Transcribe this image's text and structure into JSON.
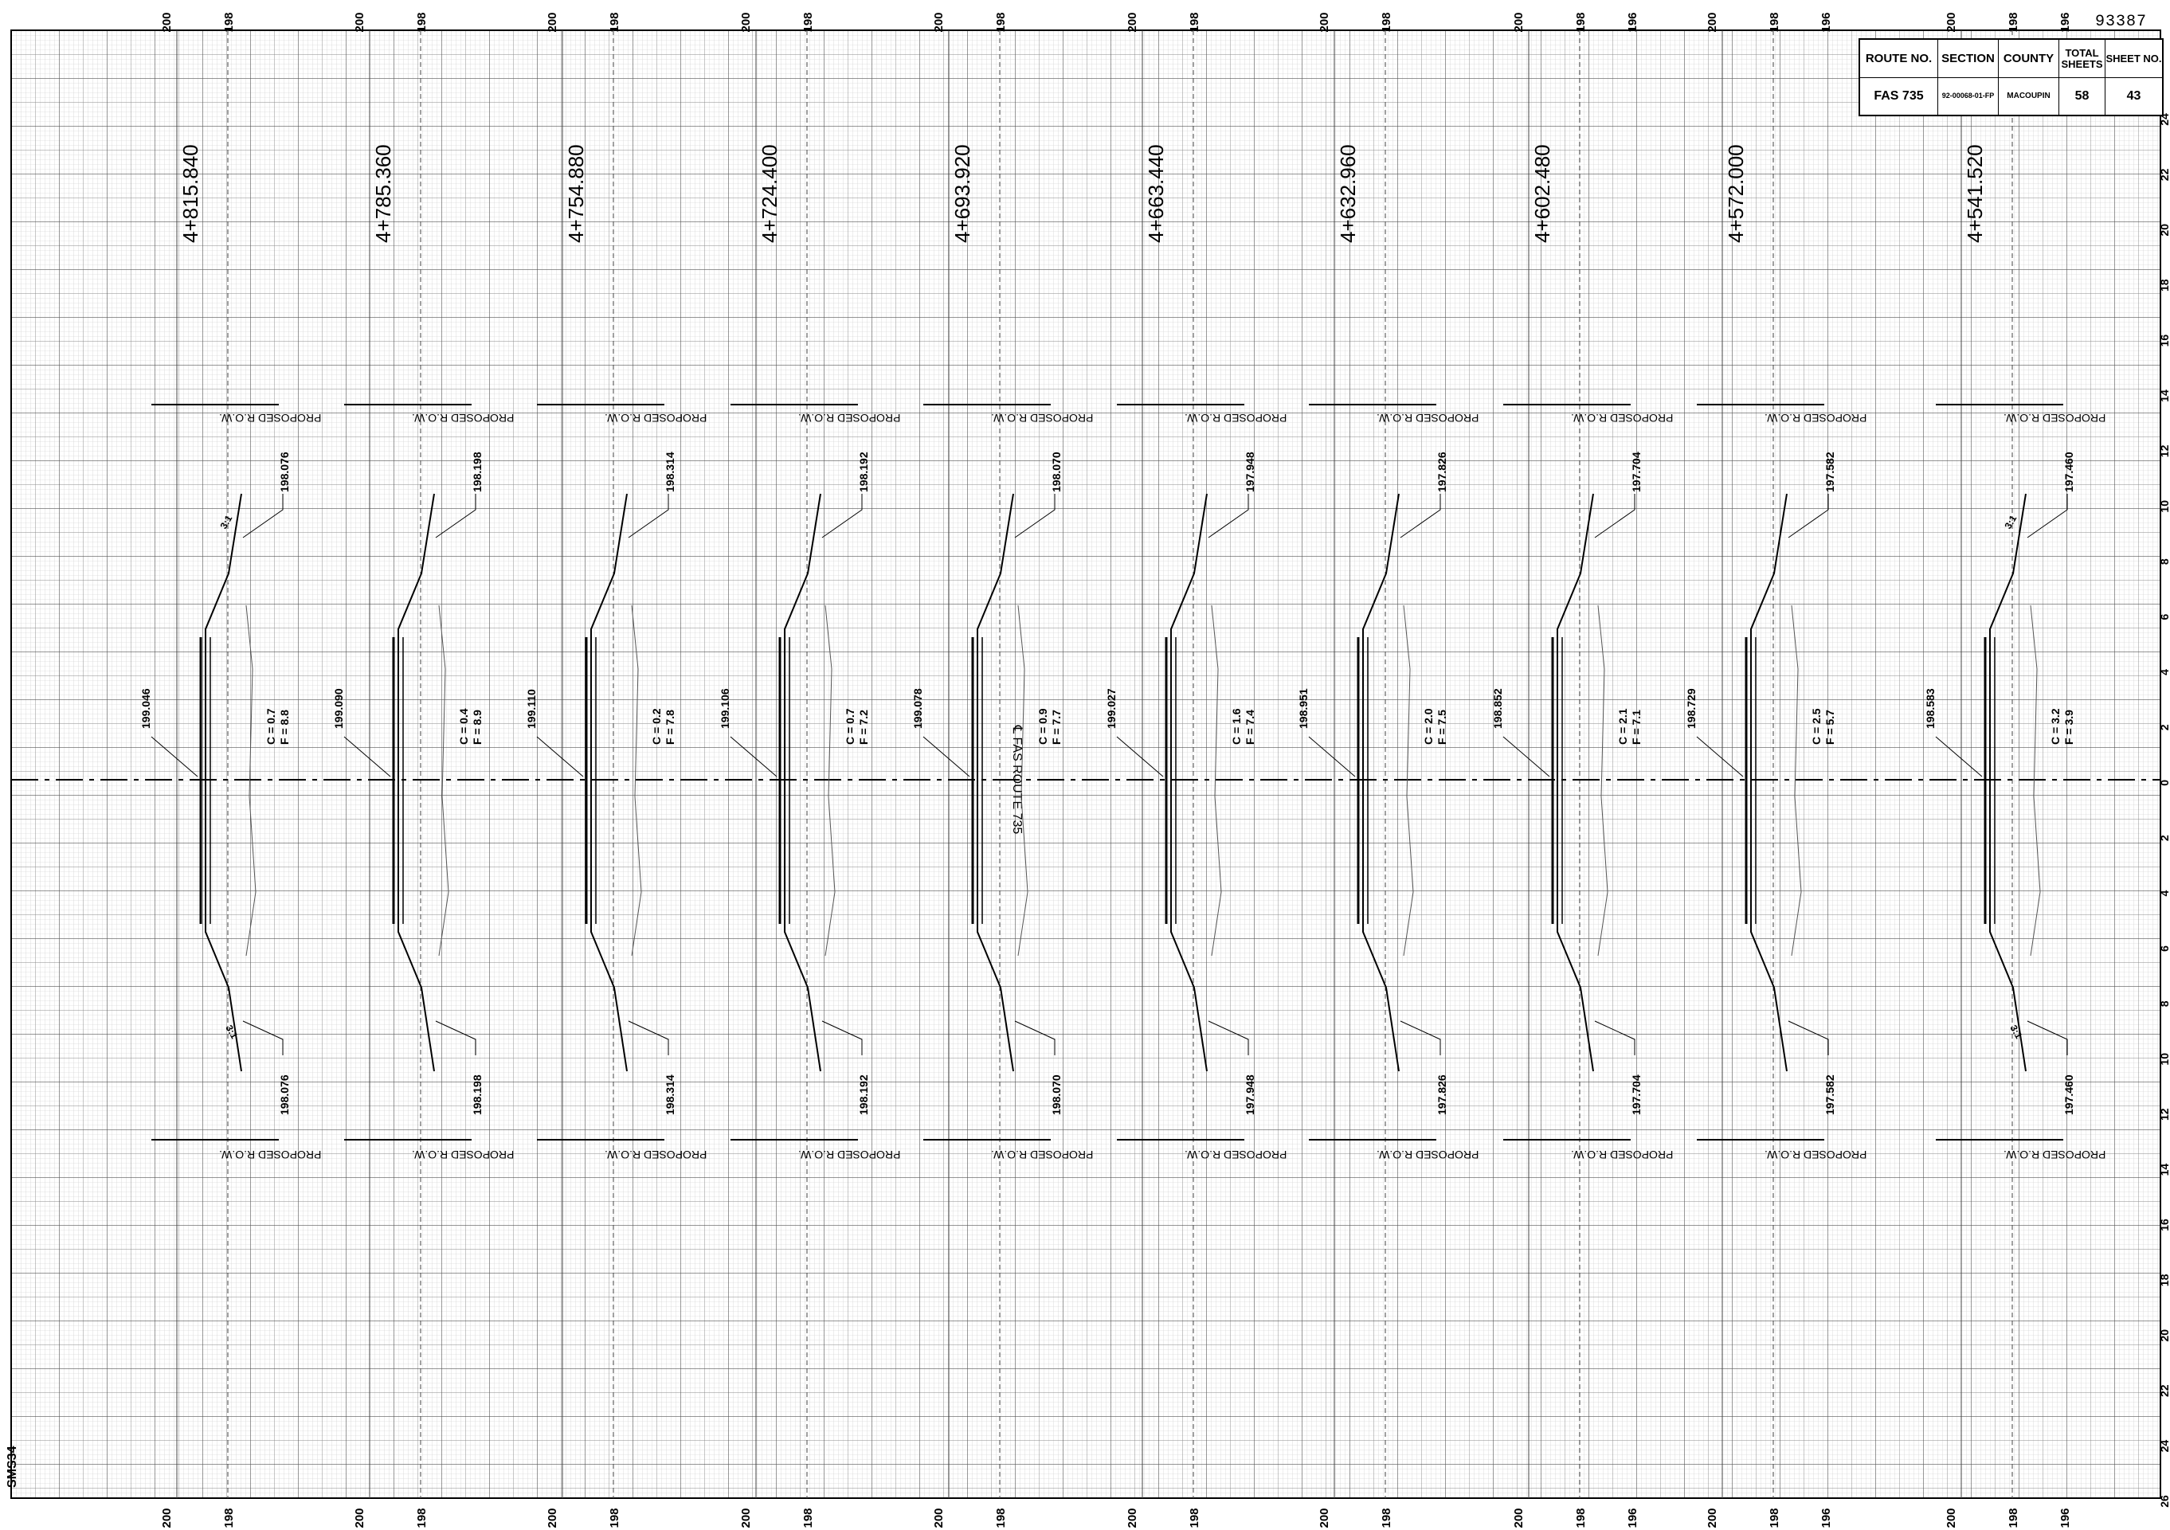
{
  "sheet_number": "93387",
  "corner_code": "SMS34",
  "title_block": {
    "route_no_header": "ROUTE NO.",
    "section_header": "SECTION",
    "county_header": "COUNTY",
    "total_sheets_header": "TOTAL SHEETS",
    "sheet_no_header": "SHEET NO.",
    "route_no": "FAS 735",
    "section": "92-00068-01-FP",
    "county": "MACOUPIN",
    "total_sheets": "58",
    "sheet_no": "43"
  },
  "centerline_label": "℄ FAS ROUTE 735",
  "row_label": "PROPOSED R.O.W.",
  "slope_label": "3:1",
  "elevation_scale_labels": [
    "200",
    "198",
    "196"
  ],
  "offset_scale_labels": [
    "24",
    "22",
    "20",
    "18",
    "16",
    "14",
    "12",
    "10",
    "8",
    "6",
    "4",
    "2",
    "0",
    "2",
    "4",
    "6",
    "8",
    "10",
    "12",
    "14",
    "16",
    "18",
    "20",
    "22",
    "24",
    "26"
  ],
  "sections": [
    {
      "station": "4+815.840",
      "centerline_elev": "199.046",
      "edge_elev": "198.076",
      "cut": "C = 0.7",
      "fill": "F = 8.8"
    },
    {
      "station": "4+785.360",
      "centerline_elev": "199.090",
      "edge_elev": "198.198",
      "cut": "C = 0.4",
      "fill": "F = 8.9"
    },
    {
      "station": "4+754.880",
      "centerline_elev": "199.110",
      "edge_elev": "198.314",
      "cut": "C = 0.2",
      "fill": "F = 7.8"
    },
    {
      "station": "4+724.400",
      "centerline_elev": "199.106",
      "edge_elev": "198.192",
      "cut": "C = 0.7",
      "fill": "F = 7.2"
    },
    {
      "station": "4+693.920",
      "centerline_elev": "199.078",
      "edge_elev": "198.070",
      "cut": "C = 0.9",
      "fill": "F = 7.7"
    },
    {
      "station": "4+663.440",
      "centerline_elev": "199.027",
      "edge_elev": "197.948",
      "cut": "C = 1.6",
      "fill": "F = 7.4"
    },
    {
      "station": "4+632.960",
      "centerline_elev": "198.951",
      "edge_elev": "197.826",
      "cut": "C = 2.0",
      "fill": "F = 7.5"
    },
    {
      "station": "4+602.480",
      "centerline_elev": "198.852",
      "edge_elev": "197.704",
      "cut": "C = 2.1",
      "fill": "F = 7.1"
    },
    {
      "station": "4+572.000",
      "centerline_elev": "198.729",
      "edge_elev": "197.582",
      "cut": "C = 2.5",
      "fill": "F = 5.7"
    },
    {
      "station": "4+541.520",
      "centerline_elev": "198.583",
      "edge_elev": "197.460",
      "cut": "C = 3.2",
      "fill": "F = 3.9"
    }
  ]
}
